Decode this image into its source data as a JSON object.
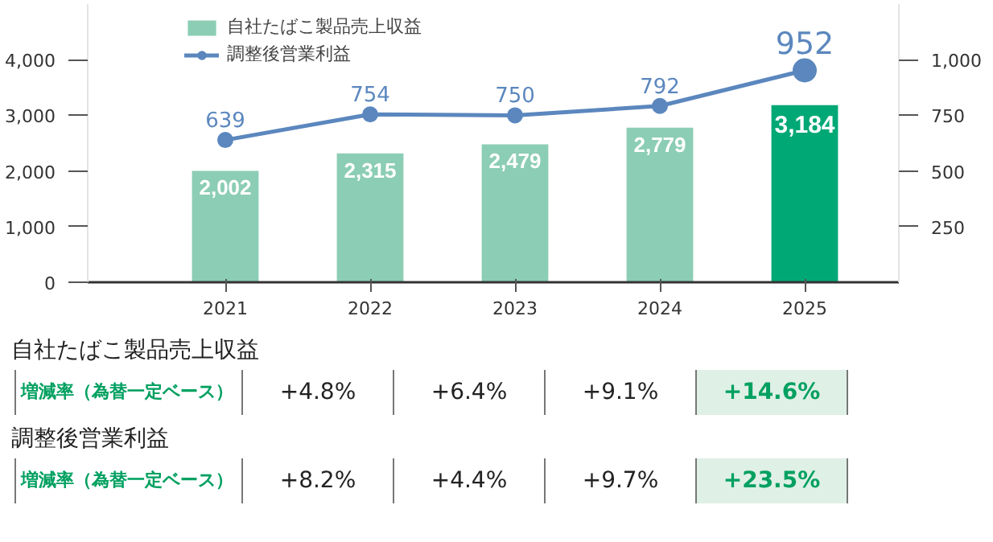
{
  "chart_data": {
    "type": "bar",
    "categories": [
      "2021",
      "2022",
      "2023",
      "2024",
      "2025"
    ],
    "series": [
      {
        "name": "自社たばこ製品売上収益",
        "color": "#8ccdb5",
        "colors": [
          "#8ccdb5",
          "#8ccdb5",
          "#8ccdb5",
          "#8ccdb5",
          "#00a876"
        ],
        "values": [
          2002,
          2315,
          2479,
          2779,
          3184
        ],
        "value_labels": [
          "2,002",
          "2,315",
          "2,479",
          "2,779",
          "3,184"
        ]
      },
      {
        "name": "調整後営業利益",
        "type": "line",
        "axis": "y2",
        "color": "#5b87be",
        "values": [
          639,
          754,
          750,
          792,
          952
        ]
      }
    ],
    "ylim": [
      0,
      5000
    ],
    "yticks": [
      0,
      {
        "value": 1000,
        "label": "1,000"
      },
      {
        "value": 2000,
        "label": "2,000"
      },
      {
        "value": 3000,
        "label": "3,000"
      },
      {
        "value": 4000,
        "label": "4,000"
      }
    ],
    "y2lim": [
      0,
      1250
    ],
    "y2ticks": [
      250,
      500,
      750,
      {
        "value": 1000,
        "label": "1,000"
      }
    ],
    "marker": "circle",
    "data_labels": true,
    "legend": "top left",
    "grid": false,
    "annotations": [
      "自社たばこ製品売上収益",
      "増減率（為替一定ベース）",
      "+4.8%",
      "+6.4%",
      "+9.1%",
      "+14.6%",
      "調整後営業利益",
      "増減率（為替一定ベース）",
      "+8.2%",
      "+4.4%",
      "+9.7%",
      "+23.5%"
    ]
  }
}
